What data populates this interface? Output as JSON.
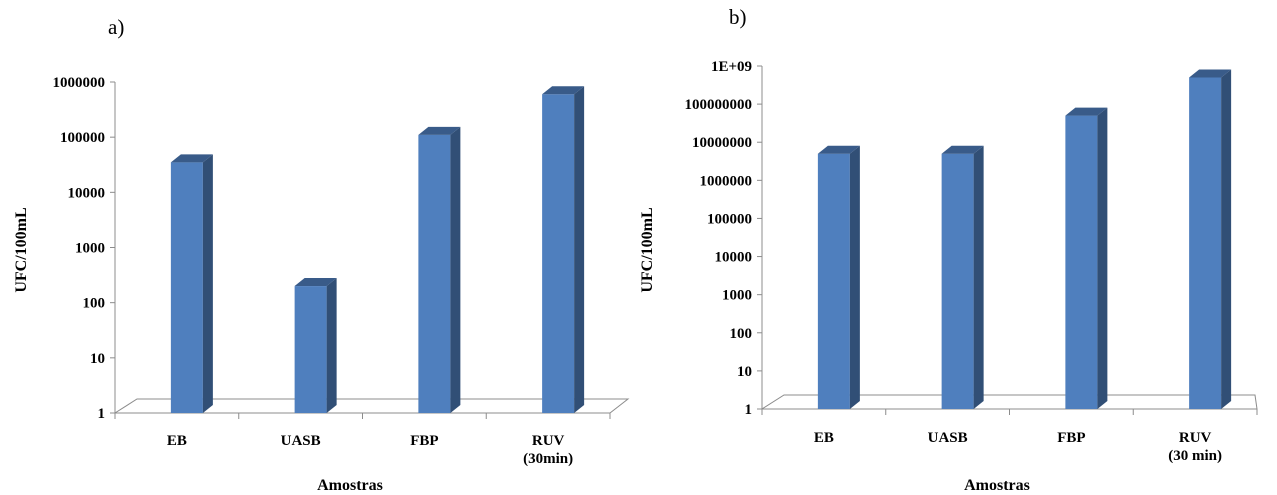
{
  "chart_data": [
    {
      "type": "bar",
      "panel_label": "a)",
      "categories": [
        [
          "EB"
        ],
        [
          "UASB"
        ],
        [
          "FBP"
        ],
        [
          "RUV",
          "(30min)"
        ]
      ],
      "values": [
        35000,
        200,
        110000,
        600000
      ],
      "xlabel": "Amostras",
      "ylabel": "UFC/100mL",
      "yscale": "log",
      "ylim": [
        1,
        1000000
      ],
      "yticks": [
        "1",
        "10",
        "100",
        "1000",
        "10000",
        "100000",
        "1000000"
      ],
      "bar_color": "#4F7FBE",
      "grid": false
    },
    {
      "type": "bar",
      "panel_label": "b)",
      "categories": [
        [
          "EB"
        ],
        [
          "UASB"
        ],
        [
          "FBP"
        ],
        [
          "RUV",
          "(30 min)"
        ]
      ],
      "values": [
        5000000,
        5000000,
        50000000,
        500000000
      ],
      "xlabel": "Amostras",
      "ylabel": "UFC/100mL",
      "yscale": "log",
      "ylim": [
        1,
        1000000000
      ],
      "yticks": [
        "1",
        "10",
        "100",
        "1000",
        "10000",
        "100000",
        "1000000",
        "10000000",
        "100000000",
        "1E+09"
      ],
      "bar_color": "#4F7FBE",
      "grid": false
    }
  ]
}
